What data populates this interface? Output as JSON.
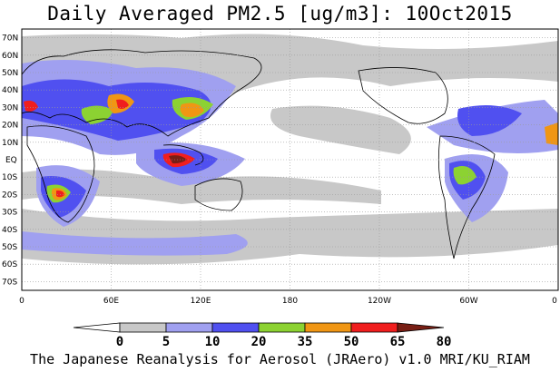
{
  "title": "Daily Averaged PM2.5 [ug/m3]: 10Oct2015",
  "footer": "The Japanese Reanalysis for Aerosol (JRAero) v1.0 MRI/KU_RIAM",
  "map": {
    "projection": "equirectangular",
    "lon_range": [
      0,
      360
    ],
    "lat_range": [
      -75,
      75
    ],
    "grid": true,
    "lat_ticks": [
      "70N",
      "60N",
      "50N",
      "40N",
      "30N",
      "20N",
      "10N",
      "EQ",
      "10S",
      "20S",
      "30S",
      "40S",
      "50S",
      "60S",
      "70S"
    ],
    "lon_ticks": [
      "0",
      "60E",
      "120E",
      "180",
      "120W",
      "60W",
      "0"
    ],
    "background_color": "#ffffff"
  },
  "colorbar": {
    "labels": [
      "0",
      "5",
      "10",
      "20",
      "35",
      "50",
      "65",
      "80"
    ],
    "colors": [
      "#ffffff",
      "#c8c8c8",
      "#a0a0f0",
      "#5050f0",
      "#8cd232",
      "#f09614",
      "#f01e1e",
      "#781e14"
    ]
  }
}
